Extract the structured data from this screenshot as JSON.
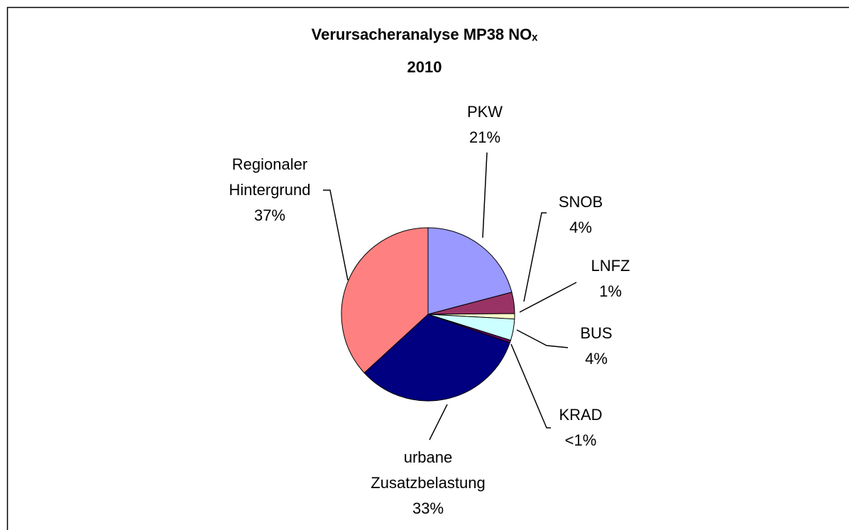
{
  "chart_data": {
    "type": "pie",
    "title": "Verursacheranalyse MP38 NOₓ",
    "subtitle": "2010",
    "categories": [
      "PKW",
      "SNOB",
      "LNFZ",
      "BUS",
      "KRAD",
      "urbane Zusatzbelastung",
      "Regionaler Hintergrund"
    ],
    "values": [
      21,
      4,
      1,
      4,
      0.5,
      33,
      37
    ],
    "value_labels": [
      "21%",
      "4%",
      "1%",
      "4%",
      "<1%",
      "33%",
      "37%"
    ],
    "colors": [
      "#9999ff",
      "#993366",
      "#ffffcc",
      "#ccffff",
      "#660066",
      "#000080",
      "#ff8080"
    ]
  }
}
